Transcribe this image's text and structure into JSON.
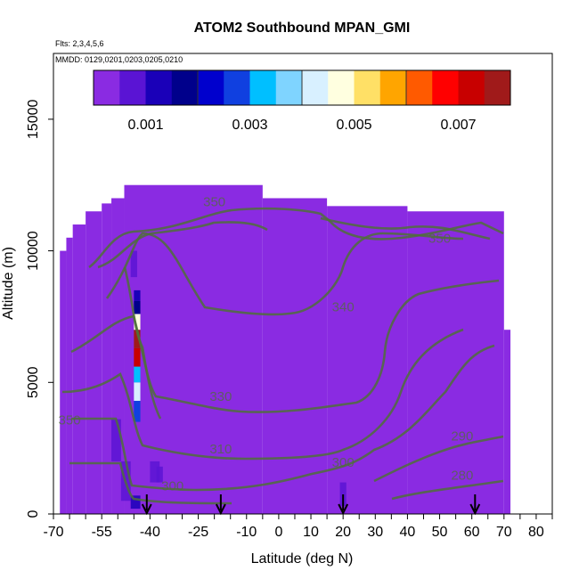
{
  "chart_data": {
    "type": "heatmap",
    "title": "ATOM2 Southbound MPAN_GMI",
    "subtitle_flights": "Flts: 2,3,4,5,6",
    "subtitle_dates": "MMDD: 0129,0201,0203,0205,0210",
    "xlabel": "Latitude (deg N)",
    "ylabel": "Altitude (m)",
    "xlim": [
      -70,
      85
    ],
    "ylim": [
      0,
      17500
    ],
    "x_ticks": [
      -70,
      -55,
      -40,
      -25,
      -10,
      0,
      10,
      20,
      30,
      40,
      50,
      60,
      70,
      80
    ],
    "y_ticks": [
      0,
      5000,
      10000,
      15000
    ],
    "colorbar": {
      "min": 0,
      "max": 0.008,
      "tick_values": [
        0.001,
        0.003,
        0.005,
        0.007
      ],
      "tick_labels": [
        "0.001",
        "0.003",
        "0.005",
        "0.007"
      ],
      "colors": [
        "#8a2be2",
        "#5a14d4",
        "#1a00b8",
        "#00008b",
        "#0000cd",
        "#1040e0",
        "#00bfff",
        "#7fd4ff",
        "#d8f0ff",
        "#ffffe0",
        "#ffe066",
        "#ffa500",
        "#ff5a00",
        "#ff0000",
        "#c80000",
        "#a01a1a"
      ]
    },
    "background_value": 0.0002,
    "hot_column": {
      "lat_range": [
        -45,
        -43
      ],
      "alt_range": [
        3500,
        8500
      ],
      "max_value": 0.0075
    },
    "arrows_lat": [
      -41,
      -18,
      20,
      61
    ],
    "contour_labels": [
      {
        "text": "350",
        "lat": -20,
        "alt": 11700
      },
      {
        "text": "350",
        "lat": 50,
        "alt": 10300
      },
      {
        "text": "340",
        "lat": 20,
        "alt": 7700
      },
      {
        "text": "330",
        "lat": -18,
        "alt": 4300
      },
      {
        "text": "310",
        "lat": -18,
        "alt": 2300
      },
      {
        "text": "300",
        "lat": -33,
        "alt": 900
      },
      {
        "text": "300",
        "lat": 20,
        "alt": 1800
      },
      {
        "text": "290",
        "lat": 57,
        "alt": 2800
      },
      {
        "text": "280",
        "lat": 57,
        "alt": 1300
      },
      {
        "text": "350",
        "lat": -65,
        "alt": 3400
      }
    ]
  }
}
